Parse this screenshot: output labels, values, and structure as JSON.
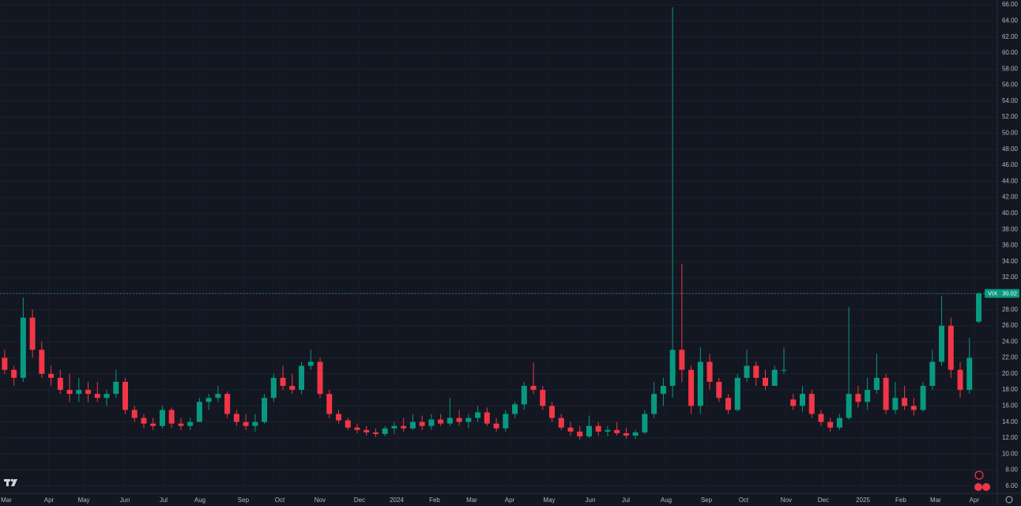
{
  "chart_data": {
    "type": "candlestick",
    "symbol": "VIX",
    "last_price": 30.02,
    "up_color": "#089981",
    "down_color": "#f23645",
    "grid": true,
    "ylim": [
      5.1,
      66.6
    ],
    "yticks": [
      {
        "value": 6,
        "label": "6.00"
      },
      {
        "value": 8,
        "label": "8.00"
      },
      {
        "value": 10,
        "label": "10.00"
      },
      {
        "value": 12,
        "label": "12.00"
      },
      {
        "value": 14,
        "label": "14.00"
      },
      {
        "value": 16,
        "label": "16.00"
      },
      {
        "value": 18,
        "label": "18.00"
      },
      {
        "value": 20,
        "label": "20.00"
      },
      {
        "value": 22,
        "label": "22.00"
      },
      {
        "value": 24,
        "label": "24.00"
      },
      {
        "value": 26,
        "label": "26.00"
      },
      {
        "value": 28,
        "label": "28.00"
      },
      {
        "value": 30,
        "label": "30.00"
      },
      {
        "value": 32,
        "label": "32.00"
      },
      {
        "value": 34,
        "label": "34.00"
      },
      {
        "value": 36,
        "label": "36.00"
      },
      {
        "value": 38,
        "label": "38.00"
      },
      {
        "value": 40,
        "label": "40.00"
      },
      {
        "value": 42,
        "label": "42.00"
      },
      {
        "value": 44,
        "label": "44.00"
      },
      {
        "value": 46,
        "label": "46.00"
      },
      {
        "value": 48,
        "label": "48.00"
      },
      {
        "value": 50,
        "label": "50.00"
      },
      {
        "value": 52,
        "label": "52.00"
      },
      {
        "value": 54,
        "label": "54.00"
      },
      {
        "value": 56,
        "label": "56.00"
      },
      {
        "value": 58,
        "label": "58.00"
      },
      {
        "value": 60,
        "label": "60.00"
      },
      {
        "value": 62,
        "label": "62.00"
      },
      {
        "value": 64,
        "label": "64.00"
      },
      {
        "value": 66,
        "label": "66.00"
      }
    ],
    "xlim": [
      -0.5,
      107
    ],
    "xticks": [
      {
        "value": 0.18,
        "label": "Mar"
      },
      {
        "value": 4.78,
        "label": "Apr"
      },
      {
        "value": 8.53,
        "label": "May"
      },
      {
        "value": 12.96,
        "label": "Jun"
      },
      {
        "value": 17.13,
        "label": "Jul"
      },
      {
        "value": 21.05,
        "label": "Aug"
      },
      {
        "value": 25.73,
        "label": "Sep"
      },
      {
        "value": 29.65,
        "label": "Oct"
      },
      {
        "value": 33.99,
        "label": "Nov"
      },
      {
        "value": 38.26,
        "label": "Dec"
      },
      {
        "value": 42.26,
        "label": "2024"
      },
      {
        "value": 46.35,
        "label": "Feb"
      },
      {
        "value": 50.35,
        "label": "Mar"
      },
      {
        "value": 54.44,
        "label": "Apr"
      },
      {
        "value": 58.7,
        "label": "May"
      },
      {
        "value": 63.13,
        "label": "Jun"
      },
      {
        "value": 66.96,
        "label": "Jul"
      },
      {
        "value": 71.31,
        "label": "Aug"
      },
      {
        "value": 75.65,
        "label": "Sep"
      },
      {
        "value": 79.65,
        "label": "Oct"
      },
      {
        "value": 84.25,
        "label": "Nov"
      },
      {
        "value": 88.25,
        "label": "Dec"
      },
      {
        "value": 92.52,
        "label": "2025"
      },
      {
        "value": 96.6,
        "label": "Feb"
      },
      {
        "value": 100.35,
        "label": "Mar"
      },
      {
        "value": 104.52,
        "label": "Apr"
      }
    ],
    "candles": [
      [
        22,
        23,
        20,
        20.5
      ],
      [
        20.5,
        21,
        18.5,
        19.5
      ],
      [
        19.5,
        29.5,
        19,
        27
      ],
      [
        27,
        28,
        22,
        23
      ],
      [
        23,
        24,
        19.5,
        20
      ],
      [
        20,
        21,
        18.5,
        19.5
      ],
      [
        19.5,
        20.5,
        17.5,
        18
      ],
      [
        18,
        20,
        16.5,
        17.5
      ],
      [
        17.5,
        19.5,
        16.5,
        18
      ],
      [
        18,
        19,
        16.5,
        17.5
      ],
      [
        17.5,
        19,
        16.5,
        17
      ],
      [
        17,
        18,
        16,
        17.5
      ],
      [
        17.5,
        20.5,
        17,
        19
      ],
      [
        19,
        19.5,
        15,
        15.5
      ],
      [
        15.5,
        16,
        14,
        14.5
      ],
      [
        14.5,
        15,
        13.2,
        13.8
      ],
      [
        13.8,
        14.5,
        13,
        13.5
      ],
      [
        13.5,
        16,
        13.2,
        15.5
      ],
      [
        15.5,
        15.8,
        13.3,
        13.8
      ],
      [
        13.8,
        14.5,
        13,
        13.5
      ],
      [
        13.5,
        14.5,
        13,
        14
      ],
      [
        14,
        17,
        14,
        16.5
      ],
      [
        16.5,
        17.5,
        15.5,
        17
      ],
      [
        17,
        18.5,
        16.5,
        17.5
      ],
      [
        17.5,
        17.8,
        14.5,
        15
      ],
      [
        15,
        15.5,
        13.5,
        14
      ],
      [
        14,
        15,
        13,
        13.5
      ],
      [
        13.5,
        15,
        12.8,
        14
      ],
      [
        14,
        17.5,
        13.8,
        17
      ],
      [
        17,
        20,
        16.5,
        19.5
      ],
      [
        19.5,
        21,
        18,
        18.5
      ],
      [
        18.5,
        20,
        17.5,
        18
      ],
      [
        18,
        21.5,
        17.5,
        21
      ],
      [
        21,
        23,
        20.5,
        21.5
      ],
      [
        21.5,
        22,
        17,
        17.5
      ],
      [
        17.5,
        18,
        14.5,
        15
      ],
      [
        15,
        15.5,
        13.8,
        14.2
      ],
      [
        14.2,
        14.5,
        13,
        13.3
      ],
      [
        13.3,
        13.8,
        12.6,
        13
      ],
      [
        13,
        13.5,
        12.3,
        12.7
      ],
      [
        12.7,
        13.2,
        12.1,
        12.5
      ],
      [
        12.5,
        13.5,
        12.2,
        13.2
      ],
      [
        13.2,
        14,
        12.5,
        13.5
      ],
      [
        13.5,
        14.5,
        12.8,
        13.2
      ],
      [
        13.2,
        15,
        13,
        14
      ],
      [
        14,
        14.8,
        13,
        13.5
      ],
      [
        13.5,
        15,
        13,
        14.3
      ],
      [
        14.3,
        15,
        13.5,
        13.8
      ],
      [
        13.8,
        17,
        13.5,
        14.5
      ],
      [
        14.5,
        15.5,
        13.5,
        14
      ],
      [
        14,
        15,
        13.2,
        14.5
      ],
      [
        14.5,
        16,
        14,
        15.2
      ],
      [
        15.2,
        15.8,
        13.5,
        13.8
      ],
      [
        13.8,
        14.5,
        12.8,
        13.2
      ],
      [
        13.2,
        15.5,
        12.8,
        15
      ],
      [
        15,
        16.5,
        14.5,
        16.2
      ],
      [
        16.2,
        19,
        15.5,
        18.5
      ],
      [
        18.5,
        21.4,
        17.5,
        18
      ],
      [
        18,
        18.5,
        15.5,
        16
      ],
      [
        16,
        16.5,
        14,
        14.5
      ],
      [
        14.5,
        15,
        13,
        13.3
      ],
      [
        13.3,
        14,
        12.3,
        12.8
      ],
      [
        12.8,
        13.5,
        11.8,
        12.2
      ],
      [
        12.2,
        14.8,
        12,
        13.5
      ],
      [
        13.5,
        14,
        12.3,
        12.8
      ],
      [
        12.8,
        13.5,
        12.2,
        13
      ],
      [
        13,
        14,
        12.3,
        12.6
      ],
      [
        12.6,
        13.3,
        11.9,
        12.3
      ],
      [
        12.3,
        13,
        11.9,
        12.7
      ],
      [
        12.7,
        15.5,
        12.5,
        15
      ],
      [
        15,
        19,
        14.5,
        17.5
      ],
      [
        17.5,
        19.5,
        16,
        18.5
      ],
      [
        18.5,
        65.7,
        17,
        23
      ],
      [
        23,
        33.7,
        19,
        20.5
      ],
      [
        20.5,
        21,
        15,
        16
      ],
      [
        16,
        23.3,
        15,
        21.5
      ],
      [
        21.5,
        22.5,
        18,
        19
      ],
      [
        19,
        19.5,
        16.5,
        17
      ],
      [
        17,
        17.5,
        15,
        15.5
      ],
      [
        15.5,
        20,
        15.3,
        19.5
      ],
      [
        19.5,
        23,
        19,
        21
      ],
      [
        21,
        21.5,
        18.5,
        19.5
      ],
      [
        19.5,
        20.5,
        18,
        18.5
      ],
      [
        18.5,
        21,
        18.5,
        20.5
      ],
      [
        20.5,
        23.3,
        20,
        20.5
      ],
      [
        16.8,
        17.5,
        15.5,
        16
      ],
      [
        16,
        18.5,
        15.3,
        17.5
      ],
      [
        17.5,
        18,
        14.5,
        15
      ],
      [
        15,
        15.5,
        13.5,
        14
      ],
      [
        14,
        14.5,
        12.8,
        13.3
      ],
      [
        13.3,
        15,
        13,
        14.5
      ],
      [
        14.5,
        28.3,
        14.3,
        17.5
      ],
      [
        17.5,
        18.5,
        15.8,
        16.5
      ],
      [
        16.5,
        19.5,
        15.5,
        18
      ],
      [
        18,
        22.5,
        17.5,
        19.5
      ],
      [
        19.5,
        20,
        15,
        15.5
      ],
      [
        15.5,
        19,
        15,
        17
      ],
      [
        17,
        18.5,
        15.5,
        16
      ],
      [
        16,
        17,
        14.8,
        15.5
      ],
      [
        15.5,
        19,
        15.3,
        18.5
      ],
      [
        18.5,
        23,
        18,
        21.5
      ],
      [
        21.5,
        29.7,
        21,
        26
      ],
      [
        26,
        27,
        19.5,
        20.5
      ],
      [
        20.5,
        21.5,
        17,
        18
      ],
      [
        18,
        24.5,
        17.5,
        22
      ],
      [
        26.5,
        30.1,
        26.3,
        30.02
      ]
    ]
  }
}
